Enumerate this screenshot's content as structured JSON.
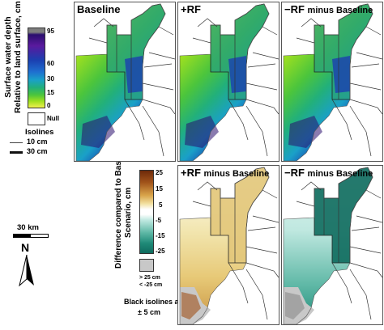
{
  "left_legend": {
    "axis_label_line1": "Surface water depth",
    "axis_label_line2": "Relative to land surface, cm",
    "ticks": [
      "95",
      "60",
      "30",
      "15",
      "0"
    ],
    "null_label": "Null",
    "isolines_title": "Isolines",
    "isoline_10": "10 cm",
    "isoline_30": "30 cm",
    "colors": [
      "#7d7d7d",
      "#2a0e6e",
      "#5a1a9e",
      "#1b3fb0",
      "#1f6fd0",
      "#1aa0c8",
      "#22b07a",
      "#4cc53c",
      "#9fe020",
      "#f0f050"
    ]
  },
  "diff_legend": {
    "axis_label_line1": "Difference compared to Base",
    "axis_label_line2": "Scenario, cm",
    "ticks": [
      "25",
      "15",
      "5",
      "-5",
      "-15",
      "-25"
    ],
    "gray_label_line1": "> 25 cm",
    "gray_label_line2": "< -25 cm",
    "black_isolines_line1": "Black isolines at",
    "black_isolines_line2": "± 5 cm",
    "colors": [
      "#6e2a0a",
      "#a0521a",
      "#d9a44a",
      "#f2e0a0",
      "#ffffff",
      "#bfe8e0",
      "#5fb8a6",
      "#0f6b5e"
    ]
  },
  "scale": {
    "distance_label": "30 km",
    "north_label": "N"
  },
  "panels": [
    {
      "id": "baseline",
      "title": "Baseline",
      "subtitle": "",
      "kind": "depth"
    },
    {
      "id": "plus-rf",
      "title": "+RF",
      "subtitle": "",
      "kind": "depth"
    },
    {
      "id": "minus-rf",
      "title": "−RF",
      "subtitle": "minus Baseline",
      "kind": "depth"
    },
    {
      "id": "plus-rf-diff",
      "title": "+RF",
      "subtitle": "minus Baseline",
      "kind": "diff-pos"
    },
    {
      "id": "minus-rf-diff",
      "title": "−RF",
      "subtitle": "minus Baseline",
      "kind": "diff-neg"
    }
  ]
}
